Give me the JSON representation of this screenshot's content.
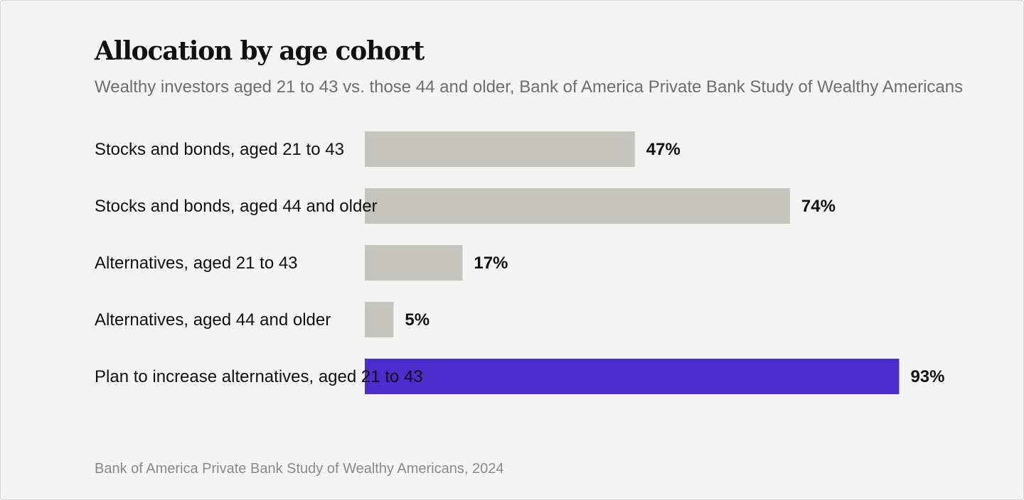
{
  "title": "Allocation by age cohort",
  "subtitle": "Wealthy investors aged 21 to 43 vs. those 44 and older, Bank of America Private Bank Study of Wealthy Americans",
  "source": "Bank of America Private Bank Study of Wealthy Americans, 2024",
  "colors": {
    "default_bar": "#c5c4be",
    "highlight_bar": "#4b2ccc",
    "background": "#f4f4f4"
  },
  "chart_data": {
    "type": "bar",
    "orientation": "horizontal",
    "title": "Allocation by age cohort",
    "subtitle": "Wealthy investors aged 21 to 43 vs. those 44 and older, Bank of America Private Bank Study of Wealthy Americans",
    "categories": [
      "Stocks and bonds, aged 21 to 43",
      "Stocks and bonds, aged 44 and older",
      "Alternatives, aged 21 to 43",
      "Alternatives, aged 44 and older",
      "Plan to increase alternatives, aged 21 to 43"
    ],
    "values": [
      47,
      74,
      17,
      5,
      93
    ],
    "value_labels": [
      "47%",
      "74%",
      "17%",
      "5%",
      "93%"
    ],
    "highlighted_index": 4,
    "xlim": [
      0,
      100
    ],
    "grid": false,
    "legend": "none"
  }
}
